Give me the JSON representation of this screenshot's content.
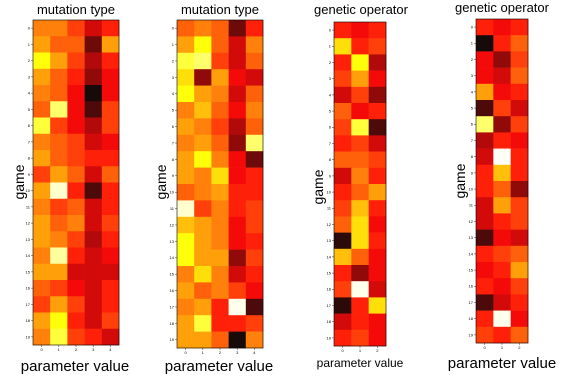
{
  "chart_data": [
    {
      "type": "heatmap",
      "title": "mutation type",
      "xlabel": "parameter value",
      "ylabel": "game",
      "x_ticks": [
        "0",
        "1",
        "2",
        "3",
        "4"
      ],
      "y_ticks": [
        "0",
        "1",
        "2",
        "3",
        "4",
        "5",
        "6",
        "7",
        "8",
        "9",
        "10",
        "11",
        "12",
        "13",
        "14",
        "15",
        "16",
        "17",
        "18",
        "19"
      ],
      "colormap": "hot",
      "values": [
        [
          0.55,
          0.55,
          0.45,
          0.3,
          0.4
        ],
        [
          0.6,
          0.5,
          0.5,
          0.15,
          0.6
        ],
        [
          0.75,
          0.6,
          0.45,
          0.25,
          0.4
        ],
        [
          0.6,
          0.5,
          0.4,
          0.2,
          0.35
        ],
        [
          0.55,
          0.5,
          0.35,
          0.02,
          0.35
        ],
        [
          0.5,
          0.85,
          0.35,
          0.1,
          0.45
        ],
        [
          0.8,
          0.45,
          0.35,
          0.25,
          0.45
        ],
        [
          0.55,
          0.5,
          0.45,
          0.3,
          0.35
        ],
        [
          0.6,
          0.5,
          0.45,
          0.4,
          0.4
        ],
        [
          0.45,
          0.6,
          0.5,
          0.3,
          0.5
        ],
        [
          0.6,
          0.95,
          0.4,
          0.1,
          0.4
        ],
        [
          0.55,
          0.45,
          0.5,
          0.3,
          0.4
        ],
        [
          0.6,
          0.5,
          0.55,
          0.3,
          0.45
        ],
        [
          0.6,
          0.55,
          0.45,
          0.25,
          0.4
        ],
        [
          0.55,
          0.9,
          0.4,
          0.3,
          0.35
        ],
        [
          0.6,
          0.6,
          0.3,
          0.3,
          0.3
        ],
        [
          0.5,
          0.45,
          0.35,
          0.3,
          0.4
        ],
        [
          0.45,
          0.6,
          0.45,
          0.3,
          0.4
        ],
        [
          0.6,
          0.75,
          0.4,
          0.3,
          0.45
        ],
        [
          0.55,
          0.8,
          0.45,
          0.4,
          0.3
        ]
      ]
    },
    {
      "type": "heatmap",
      "title": "mutation type",
      "xlabel": "parameter value",
      "ylabel": "game",
      "x_ticks": [
        "0",
        "1",
        "2",
        "3",
        "4"
      ],
      "y_ticks": [
        "0",
        "1",
        "2",
        "3",
        "4",
        "5",
        "6",
        "7",
        "8",
        "9",
        "10",
        "11",
        "12",
        "13",
        "14",
        "15",
        "16",
        "17",
        "18",
        "19"
      ],
      "colormap": "hot",
      "values": [
        [
          0.5,
          0.55,
          0.5,
          0.15,
          0.4
        ],
        [
          0.6,
          0.75,
          0.5,
          0.3,
          0.55
        ],
        [
          0.8,
          0.85,
          0.45,
          0.3,
          0.5
        ],
        [
          0.7,
          0.2,
          0.6,
          0.35,
          0.3
        ],
        [
          0.75,
          0.6,
          0.55,
          0.3,
          0.5
        ],
        [
          0.55,
          0.65,
          0.5,
          0.35,
          0.55
        ],
        [
          0.6,
          0.55,
          0.45,
          0.25,
          0.5
        ],
        [
          0.55,
          0.6,
          0.5,
          0.2,
          0.85
        ],
        [
          0.6,
          0.75,
          0.55,
          0.35,
          0.15
        ],
        [
          0.6,
          0.55,
          0.7,
          0.35,
          0.4
        ],
        [
          0.5,
          0.55,
          0.6,
          0.4,
          0.4
        ],
        [
          0.95,
          0.45,
          0.55,
          0.4,
          0.45
        ],
        [
          0.65,
          0.6,
          0.55,
          0.35,
          0.45
        ],
        [
          0.75,
          0.6,
          0.55,
          0.35,
          0.4
        ],
        [
          0.75,
          0.6,
          0.6,
          0.2,
          0.45
        ],
        [
          0.55,
          0.7,
          0.55,
          0.3,
          0.4
        ],
        [
          0.6,
          0.5,
          0.55,
          0.45,
          0.35
        ],
        [
          0.55,
          0.6,
          0.4,
          0.98,
          0.1
        ],
        [
          0.6,
          0.8,
          0.4,
          0.4,
          0.45
        ],
        [
          0.6,
          0.6,
          0.5,
          0.02,
          0.55
        ]
      ]
    },
    {
      "type": "heatmap",
      "title": "genetic operator",
      "xlabel": "parameter value",
      "ylabel": "game",
      "x_ticks": [
        "0",
        "1",
        "2"
      ],
      "y_ticks": [
        "0",
        "1",
        "2",
        "3",
        "4",
        "5",
        "6",
        "7",
        "8",
        "9",
        "10",
        "11",
        "12",
        "13",
        "14",
        "15",
        "16",
        "17",
        "18",
        "19"
      ],
      "colormap": "hot",
      "values": [
        [
          0.4,
          0.35,
          0.4
        ],
        [
          0.7,
          0.4,
          0.45
        ],
        [
          0.4,
          0.75,
          0.25
        ],
        [
          0.45,
          0.6,
          0.35
        ],
        [
          0.3,
          0.45,
          0.2
        ],
        [
          0.5,
          0.35,
          0.4
        ],
        [
          0.45,
          0.8,
          0.1
        ],
        [
          0.4,
          0.45,
          0.3
        ],
        [
          0.5,
          0.5,
          0.45
        ],
        [
          0.3,
          0.55,
          0.4
        ],
        [
          0.4,
          0.5,
          0.6
        ],
        [
          0.45,
          0.65,
          0.4
        ],
        [
          0.5,
          0.7,
          0.35
        ],
        [
          0.05,
          0.7,
          0.4
        ],
        [
          0.65,
          0.5,
          0.35
        ],
        [
          0.4,
          0.2,
          0.35
        ],
        [
          0.45,
          0.98,
          0.3
        ],
        [
          0.05,
          0.4,
          0.7
        ],
        [
          0.3,
          0.4,
          0.35
        ],
        [
          0.4,
          0.45,
          0.35
        ]
      ]
    },
    {
      "type": "heatmap",
      "title": "genetic operator",
      "xlabel": "parameter value",
      "ylabel": "game",
      "x_ticks": [
        "0",
        "1",
        "2"
      ],
      "y_ticks": [
        "0",
        "1",
        "2",
        "3",
        "4",
        "5",
        "6",
        "7",
        "8",
        "9",
        "10",
        "11",
        "12",
        "13",
        "14",
        "15",
        "16",
        "17",
        "18",
        "19"
      ],
      "colormap": "hot",
      "values": [
        [
          0.4,
          0.35,
          0.4
        ],
        [
          0.02,
          0.4,
          0.5
        ],
        [
          0.35,
          0.2,
          0.45
        ],
        [
          0.35,
          0.3,
          0.5
        ],
        [
          0.6,
          0.35,
          0.4
        ],
        [
          0.1,
          0.45,
          0.3
        ],
        [
          0.85,
          0.2,
          0.45
        ],
        [
          0.25,
          0.4,
          0.35
        ],
        [
          0.3,
          0.99,
          0.4
        ],
        [
          0.4,
          0.65,
          0.4
        ],
        [
          0.4,
          0.5,
          0.2
        ],
        [
          0.3,
          0.6,
          0.45
        ],
        [
          0.3,
          0.4,
          0.45
        ],
        [
          0.1,
          0.35,
          0.3
        ],
        [
          0.4,
          0.45,
          0.5
        ],
        [
          0.35,
          0.4,
          0.6
        ],
        [
          0.4,
          0.35,
          0.45
        ],
        [
          0.1,
          0.3,
          0.4
        ],
        [
          0.4,
          0.98,
          0.35
        ],
        [
          0.45,
          0.4,
          0.5
        ]
      ]
    }
  ]
}
